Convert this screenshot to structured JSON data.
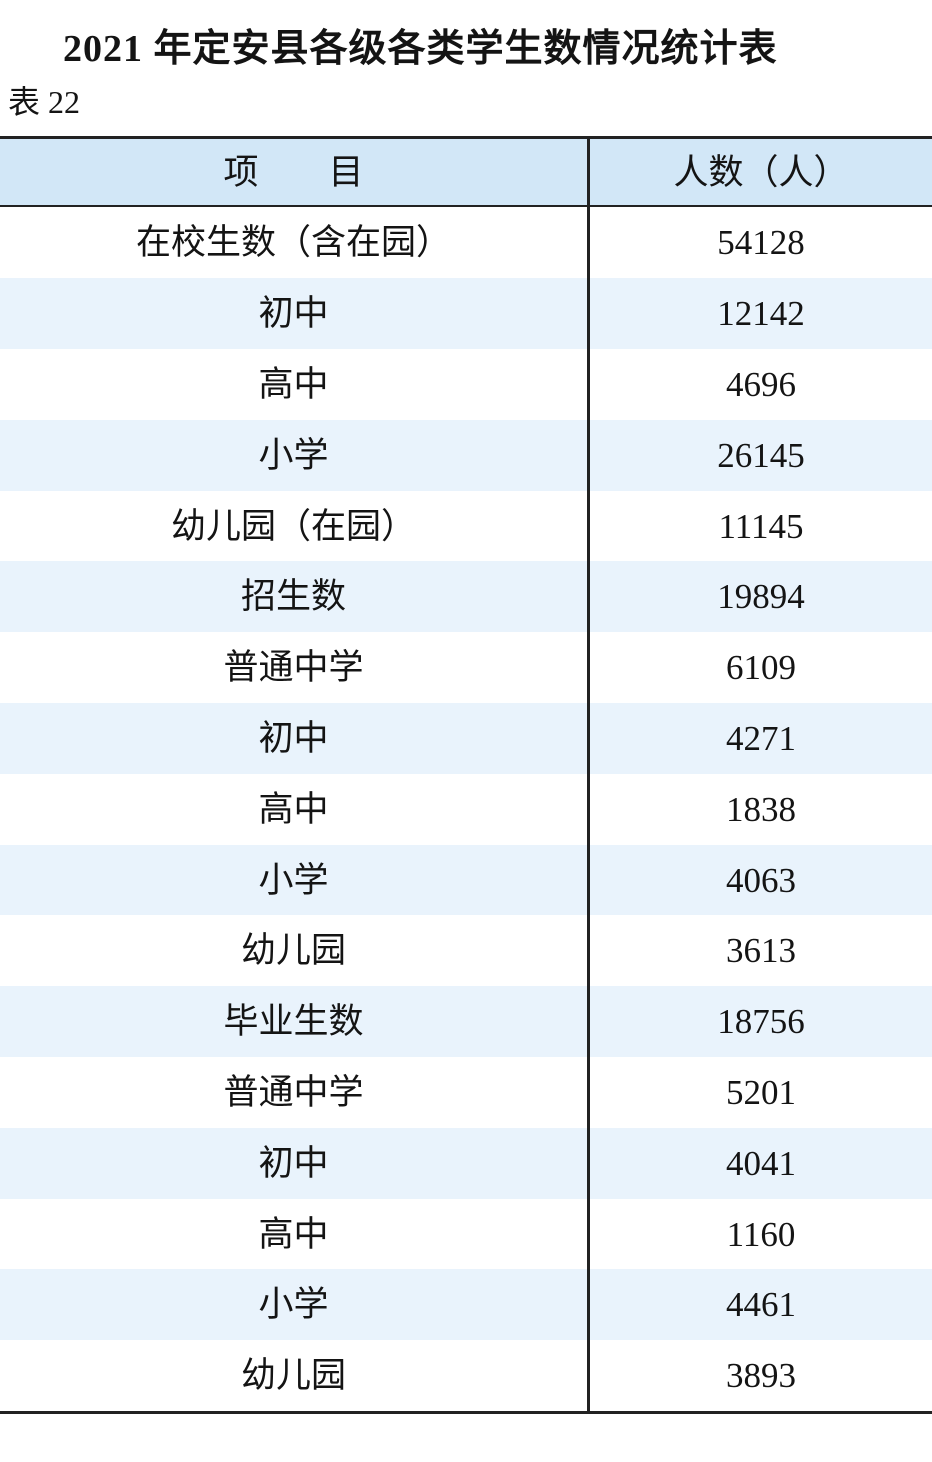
{
  "page": {
    "title": "2021 年定安县各级各类学生数情况统计表",
    "table_number": "表 22"
  },
  "table": {
    "columns": {
      "item": "项　　目",
      "count": "人数（人）"
    },
    "rows": [
      {
        "label": "在校生数（含在园）",
        "value": "54128"
      },
      {
        "label": "初中",
        "value": "12142"
      },
      {
        "label": "高中",
        "value": "4696"
      },
      {
        "label": "小学",
        "value": "26145"
      },
      {
        "label": "幼儿园（在园）",
        "value": "11145"
      },
      {
        "label": "招生数",
        "value": "19894"
      },
      {
        "label": "普通中学",
        "value": "6109"
      },
      {
        "label": "初中",
        "value": "4271"
      },
      {
        "label": "高中",
        "value": "1838"
      },
      {
        "label": "小学",
        "value": "4063"
      },
      {
        "label": "幼儿园",
        "value": "3613"
      },
      {
        "label": "毕业生数",
        "value": "18756"
      },
      {
        "label": "普通中学",
        "value": "5201"
      },
      {
        "label": "初中",
        "value": "4041"
      },
      {
        "label": "高中",
        "value": "1160"
      },
      {
        "label": "小学",
        "value": "4461"
      },
      {
        "label": "幼儿园",
        "value": "3893"
      }
    ]
  },
  "colors": {
    "header_bg": "#d2e7f7",
    "row_alt_bg": "#e9f3fc",
    "border": "#222222",
    "text": "#141414"
  },
  "chart_data": {
    "type": "table",
    "title": "2021 年定安县各级各类学生数情况统计表",
    "table_number": "表 22",
    "columns": [
      "项目",
      "人数（人）"
    ],
    "rows": [
      [
        "在校生数（含在园）",
        54128
      ],
      [
        "初中",
        12142
      ],
      [
        "高中",
        4696
      ],
      [
        "小学",
        26145
      ],
      [
        "幼儿园（在园）",
        11145
      ],
      [
        "招生数",
        19894
      ],
      [
        "普通中学",
        6109
      ],
      [
        "初中",
        4271
      ],
      [
        "高中",
        1838
      ],
      [
        "小学",
        4063
      ],
      [
        "幼儿园",
        3613
      ],
      [
        "毕业生数",
        18756
      ],
      [
        "普通中学",
        5201
      ],
      [
        "初中",
        4041
      ],
      [
        "高中",
        1160
      ],
      [
        "小学",
        4461
      ],
      [
        "幼儿园",
        3893
      ]
    ]
  }
}
